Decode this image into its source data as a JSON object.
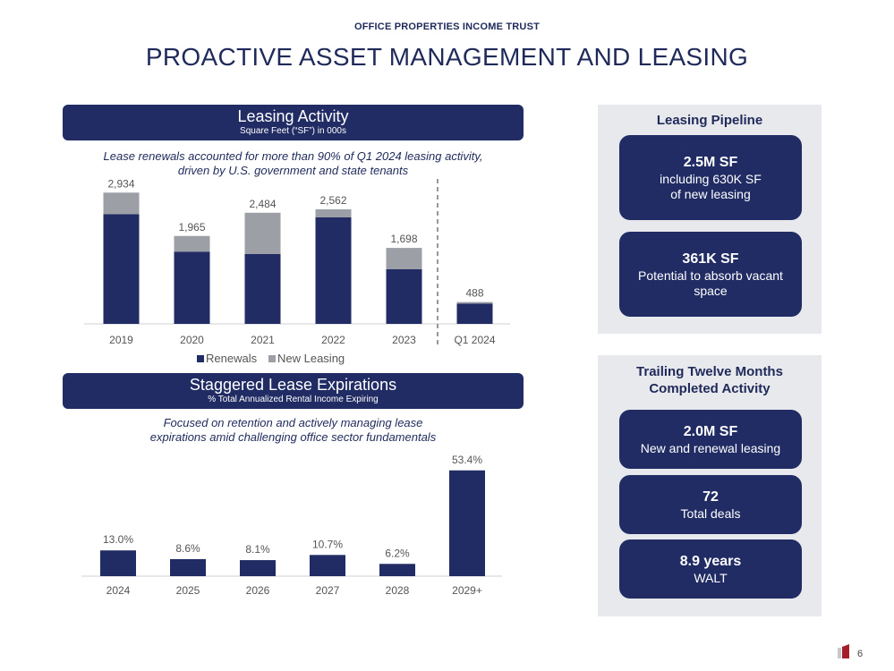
{
  "header": {
    "company": "OFFICE PROPERTIES INCOME TRUST",
    "title": "PROACTIVE ASSET MANAGEMENT AND LEASING"
  },
  "leasing_activity": {
    "banner_title": "Leasing Activity",
    "banner_subtitle": "Square Feet (“SF”) in 000s",
    "subtitle_line1": "Lease renewals accounted for more than 90% of Q1 2024 leasing activity,",
    "subtitle_line2": "driven by U.S. government and state tenants"
  },
  "staggered_expirations": {
    "banner_title": "Staggered Lease Expirations",
    "banner_subtitle": "% Total Annualized Rental Income Expiring",
    "subtitle_line1": "Focused on retention and actively managing lease",
    "subtitle_line2": "expirations amid challenging office sector fundamentals"
  },
  "chart_data": [
    {
      "type": "bar",
      "stacked": true,
      "categories": [
        "2019",
        "2020",
        "2021",
        "2022",
        "2023",
        "Q1 2024"
      ],
      "series": [
        {
          "name": "Renewals",
          "values": [
            2450,
            1615,
            1560,
            2380,
            1220,
            455
          ],
          "color": "#202c63"
        },
        {
          "name": "New Leasing",
          "values": [
            484,
            350,
            924,
            182,
            478,
            33
          ],
          "color": "#9d9fa6"
        }
      ],
      "totals": [
        "2,934",
        "1,965",
        "2,484",
        "2,562",
        "1,698",
        "488"
      ],
      "ylim": [
        0,
        3100
      ],
      "legend_position": "bottom",
      "grid": false
    },
    {
      "type": "bar",
      "categories": [
        "2024",
        "2025",
        "2026",
        "2027",
        "2028",
        "2029+"
      ],
      "values": [
        13.0,
        8.6,
        8.1,
        10.7,
        6.2,
        53.4
      ],
      "labels": [
        "13.0%",
        "8.6%",
        "8.1%",
        "10.7%",
        "6.2%",
        "53.4%"
      ],
      "ylim": [
        0,
        56
      ],
      "grid": false
    }
  ],
  "pipeline": {
    "title": "Leasing Pipeline",
    "cards": [
      {
        "value": "2.5M SF",
        "desc_line1": "including 630K SF",
        "desc_line2": "of new leasing"
      },
      {
        "value": "361K SF",
        "desc_line1": "Potential to absorb vacant",
        "desc_line2": "space"
      }
    ]
  },
  "ttm": {
    "title_line1": "Trailing Twelve Months",
    "title_line2": "Completed Activity",
    "cards": [
      {
        "value": "2.0M SF",
        "desc": "New and renewal leasing"
      },
      {
        "value": "72",
        "desc": "Total deals"
      },
      {
        "value": "8.9 years",
        "desc": "WALT"
      }
    ]
  },
  "footer": {
    "page_number": "6",
    "logo_color": "#a51f2a"
  }
}
